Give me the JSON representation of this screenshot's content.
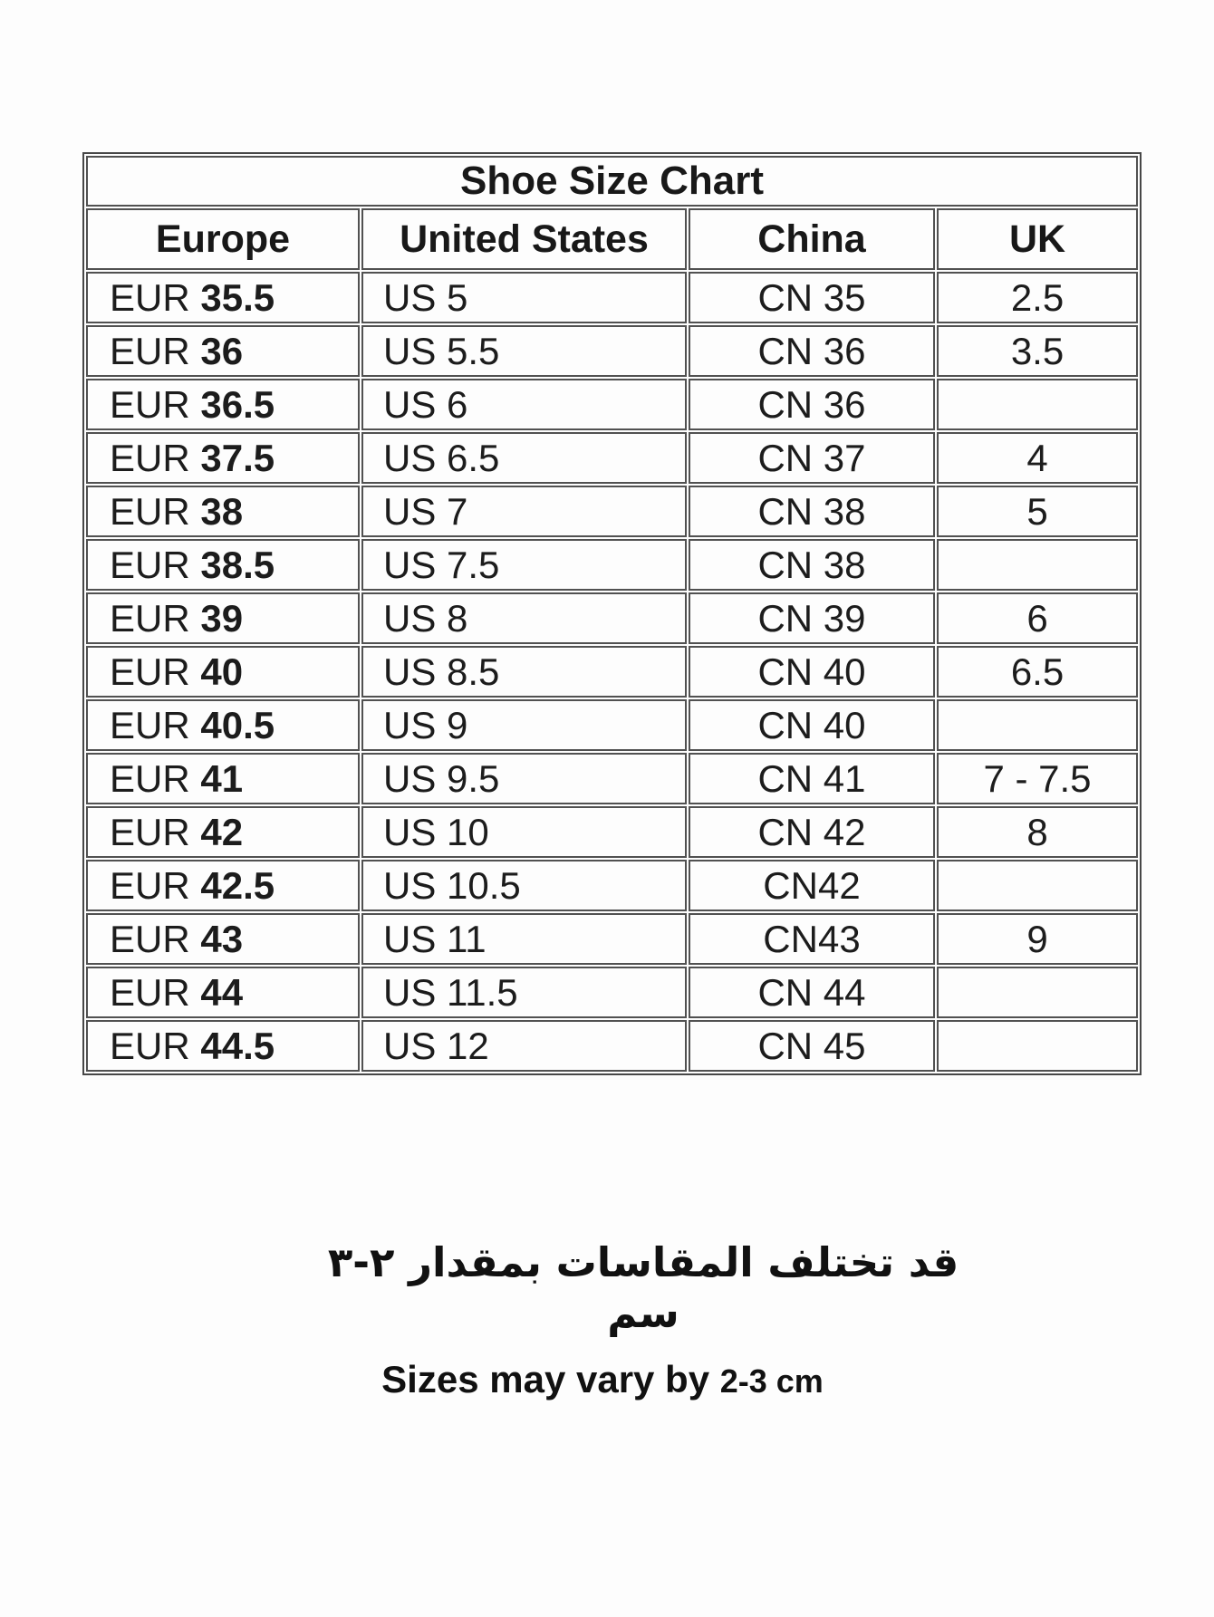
{
  "colors": {
    "page_background": "#fdfdfd",
    "table_border": "#4a4a4a",
    "text": "#181818"
  },
  "chart_data": {
    "type": "table",
    "title": "Shoe Size Chart",
    "columns": [
      "Europe",
      "United States",
      "China",
      "UK"
    ],
    "rows": [
      {
        "europe_prefix": "EUR",
        "europe_size": "35.5",
        "us": "US 5",
        "china": "CN 35",
        "uk": "2.5"
      },
      {
        "europe_prefix": "EUR",
        "europe_size": "36",
        "us": "US 5.5",
        "china": "CN 36",
        "uk": "3.5"
      },
      {
        "europe_prefix": "EUR",
        "europe_size": "36.5",
        "us": "US 6",
        "china": "CN 36",
        "uk": ""
      },
      {
        "europe_prefix": "EUR",
        "europe_size": "37.5",
        "us": "US 6.5",
        "china": "CN 37",
        "uk": "4"
      },
      {
        "europe_prefix": "EUR",
        "europe_size": "38",
        "us": "US 7",
        "china": "CN 38",
        "uk": "5"
      },
      {
        "europe_prefix": "EUR",
        "europe_size": "38.5",
        "us": "US 7.5",
        "china": "CN 38",
        "uk": ""
      },
      {
        "europe_prefix": "EUR",
        "europe_size": "39",
        "us": "US 8",
        "china": "CN 39",
        "uk": "6"
      },
      {
        "europe_prefix": "EUR",
        "europe_size": "40",
        "us": "US 8.5",
        "china": "CN 40",
        "uk": "6.5"
      },
      {
        "europe_prefix": "EUR",
        "europe_size": "40.5",
        "us": "US 9",
        "china": "CN 40",
        "uk": ""
      },
      {
        "europe_prefix": "EUR",
        "europe_size": "41",
        "us": "US 9.5",
        "china": "CN 41",
        "uk": "7 - 7.5"
      },
      {
        "europe_prefix": "EUR",
        "europe_size": "42",
        "us": "US 10",
        "china": "CN 42",
        "uk": "8"
      },
      {
        "europe_prefix": "EUR",
        "europe_size": "42.5",
        "us": "US 10.5",
        "china": "CN42",
        "uk": ""
      },
      {
        "europe_prefix": "EUR",
        "europe_size": "43",
        "us": "US 11",
        "china": "CN43",
        "uk": "9"
      },
      {
        "europe_prefix": "EUR",
        "europe_size": "44",
        "us": "US 11.5",
        "china": "CN 44",
        "uk": ""
      },
      {
        "europe_prefix": "EUR",
        "europe_size": "44.5",
        "us": "US 12",
        "china": "CN 45",
        "uk": ""
      }
    ]
  },
  "notes": {
    "arabic": "قد تختلف المقاسات بمقدار ٢-٣ سم",
    "english_prefix": "Sizes may vary by",
    "english_value": "2-3 cm"
  }
}
